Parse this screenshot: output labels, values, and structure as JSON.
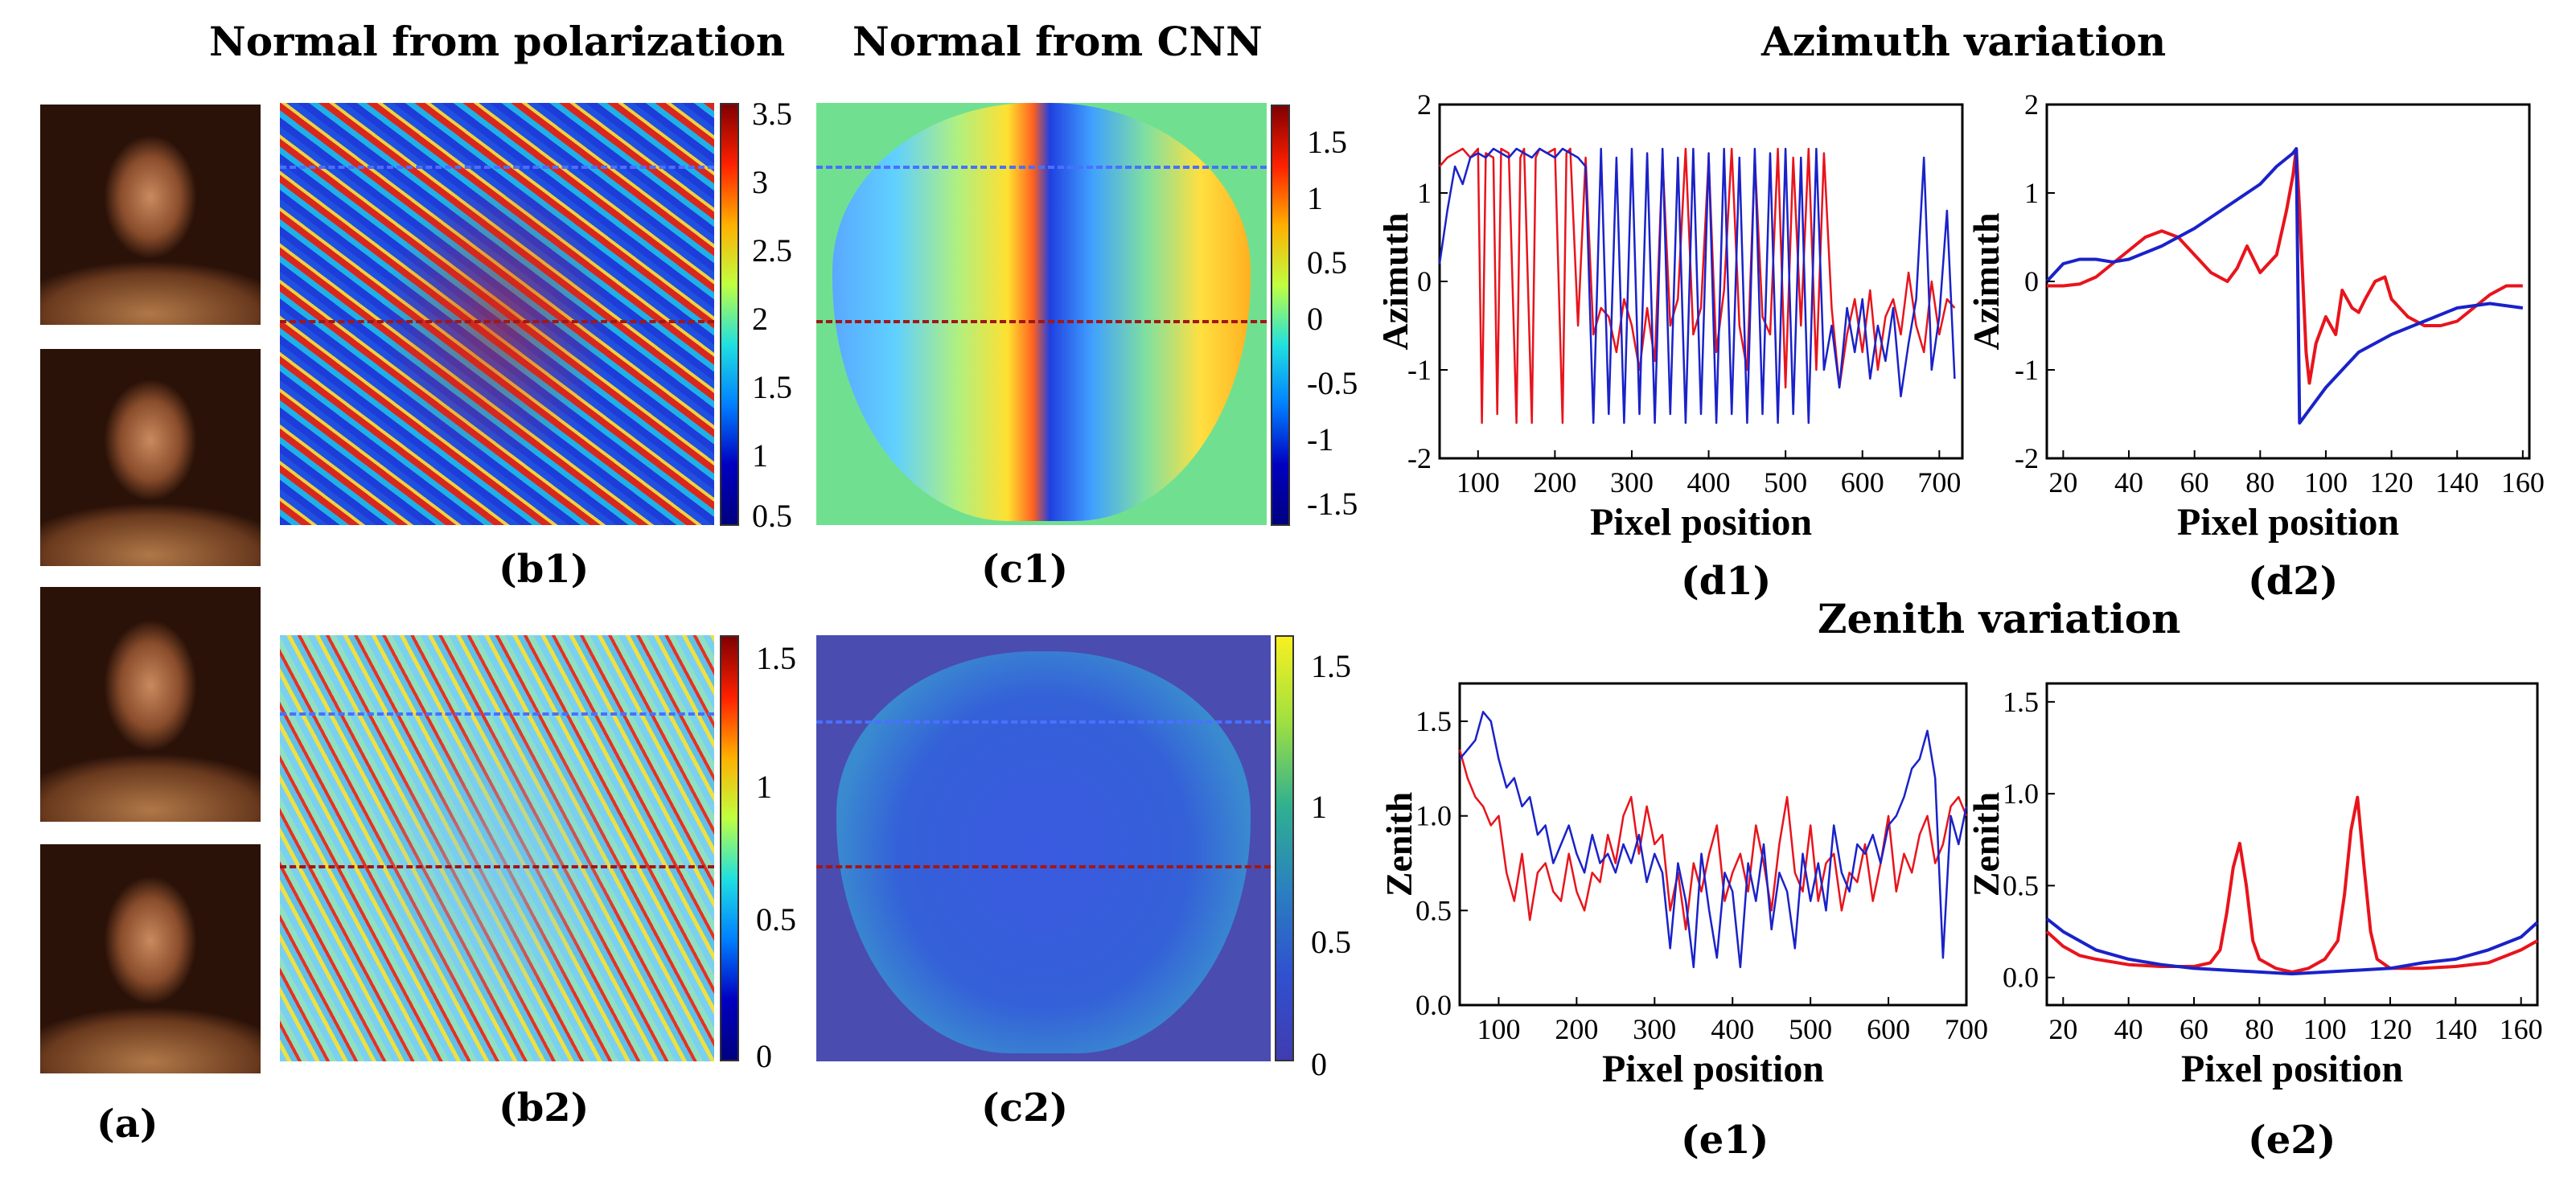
{
  "titles": {
    "polarization": "Normal from polarization",
    "cnn": "Normal from CNN",
    "azimuth": "Azimuth variation",
    "zenith": "Zenith variation"
  },
  "labels": {
    "a": "(a)",
    "b1": "(b1)",
    "b2": "(b2)",
    "c1": "(c1)",
    "c2": "(c2)",
    "d1": "(d1)",
    "d2": "(d2)",
    "e1": "(e1)",
    "e2": "(e2)"
  },
  "colorbars": {
    "b1": [
      "3.5",
      "3",
      "2.5",
      "2",
      "1.5",
      "1",
      "0.5"
    ],
    "c1": [
      "1.5",
      "1",
      "0.5",
      "0",
      "-0.5",
      "-1",
      "-1.5"
    ],
    "b2": [
      "1.5",
      "1",
      "0.5",
      "0"
    ],
    "c2": [
      "1.5",
      "1",
      "0.5",
      "0"
    ]
  },
  "colors": {
    "red": "#e8141c",
    "blue": "#1a22c8"
  },
  "chart_data": [
    {
      "id": "d1",
      "type": "line",
      "title": "",
      "xlabel": "Pixel position",
      "ylabel": "Azimuth",
      "xlim": [
        50,
        730
      ],
      "ylim": [
        -2,
        2
      ],
      "xticks": [
        100,
        200,
        300,
        400,
        500,
        600,
        700
      ],
      "yticks": [
        -2,
        -1,
        0,
        1,
        2
      ],
      "series": [
        {
          "name": "red",
          "color": "#e8141c",
          "x": [
            50,
            60,
            70,
            80,
            90,
            100,
            105,
            110,
            120,
            125,
            130,
            140,
            150,
            155,
            160,
            170,
            175,
            180,
            190,
            200,
            210,
            215,
            220,
            230,
            240,
            250,
            260,
            270,
            280,
            290,
            300,
            310,
            320,
            330,
            340,
            350,
            360,
            370,
            380,
            390,
            400,
            410,
            420,
            430,
            440,
            450,
            460,
            470,
            480,
            490,
            500,
            510,
            520,
            530,
            540,
            550,
            560,
            570,
            580,
            590,
            600,
            610,
            620,
            630,
            640,
            650,
            660,
            670,
            680,
            690,
            700,
            710,
            720
          ],
          "y": [
            1.3,
            1.4,
            1.45,
            1.5,
            1.4,
            1.5,
            -1.6,
            1.45,
            1.4,
            -1.5,
            1.5,
            1.45,
            -1.6,
            1.4,
            1.5,
            -1.6,
            1.4,
            1.5,
            1.45,
            1.5,
            -1.6,
            1.45,
            1.5,
            -0.5,
            1.4,
            -0.6,
            -0.3,
            -0.4,
            -0.8,
            -0.2,
            -0.5,
            -1.0,
            -0.3,
            -0.9,
            1.4,
            -0.5,
            -0.2,
            1.5,
            -0.6,
            -0.3,
            1.4,
            -0.8,
            -0.1,
            1.5,
            -0.5,
            -1.0,
            1.4,
            -0.4,
            -0.6,
            1.5,
            -1.2,
            1.4,
            -0.5,
            1.5,
            -1.0,
            1.45,
            -0.3,
            -1.2,
            -0.6,
            -0.2,
            -0.8,
            -0.1,
            -1.0,
            -0.4,
            -0.2,
            -0.6,
            0.1,
            -0.5,
            -0.8,
            0.0,
            -0.6,
            -0.2,
            -0.3
          ]
        },
        {
          "name": "blue",
          "color": "#1a22c8",
          "x": [
            50,
            60,
            70,
            80,
            90,
            100,
            110,
            120,
            130,
            140,
            150,
            160,
            170,
            180,
            190,
            200,
            210,
            220,
            230,
            240,
            250,
            260,
            270,
            280,
            290,
            300,
            310,
            320,
            330,
            340,
            350,
            360,
            370,
            380,
            390,
            400,
            410,
            420,
            430,
            440,
            450,
            460,
            470,
            480,
            490,
            500,
            510,
            520,
            530,
            540,
            550,
            560,
            570,
            580,
            590,
            600,
            610,
            620,
            630,
            640,
            650,
            660,
            670,
            680,
            690,
            700,
            710,
            720
          ],
          "y": [
            0.2,
            0.8,
            1.3,
            1.1,
            1.4,
            1.45,
            1.4,
            1.5,
            1.45,
            1.4,
            1.5,
            1.45,
            1.4,
            1.5,
            1.45,
            1.4,
            1.5,
            1.45,
            1.4,
            1.3,
            -1.6,
            1.5,
            -1.5,
            1.4,
            -1.6,
            1.5,
            -1.5,
            1.45,
            -1.6,
            1.5,
            -1.5,
            1.4,
            -1.6,
            1.5,
            -1.5,
            1.45,
            -1.6,
            1.5,
            -1.5,
            1.4,
            -1.6,
            1.5,
            -1.5,
            1.45,
            -1.6,
            1.5,
            -1.5,
            1.4,
            -1.6,
            1.5,
            -1.0,
            -0.5,
            -1.2,
            -0.3,
            -0.8,
            -0.2,
            -1.1,
            -0.5,
            -0.9,
            -0.3,
            -1.3,
            -0.7,
            -0.2,
            1.4,
            -1.0,
            -0.4,
            0.8,
            -1.1
          ]
        }
      ]
    },
    {
      "id": "d2",
      "type": "line",
      "title": "",
      "xlabel": "Pixel position",
      "ylabel": "Azimuth",
      "xlim": [
        15,
        162
      ],
      "ylim": [
        -2,
        2
      ],
      "xticks": [
        20,
        40,
        60,
        80,
        100,
        120,
        140,
        160
      ],
      "yticks": [
        -2,
        -1,
        0,
        1,
        2
      ],
      "series": [
        {
          "name": "red",
          "color": "#e8141c",
          "x": [
            15,
            20,
            25,
            30,
            35,
            40,
            45,
            50,
            55,
            60,
            65,
            70,
            73,
            76,
            80,
            85,
            88,
            90,
            91,
            92,
            93,
            94,
            95,
            97,
            100,
            103,
            105,
            108,
            110,
            112,
            115,
            118,
            120,
            125,
            130,
            135,
            140,
            145,
            150,
            155,
            160
          ],
          "y": [
            -0.05,
            -0.05,
            -0.03,
            0.05,
            0.2,
            0.35,
            0.5,
            0.57,
            0.5,
            0.3,
            0.1,
            0.0,
            0.15,
            0.4,
            0.1,
            0.3,
            0.8,
            1.2,
            1.5,
            0.8,
            0.0,
            -0.8,
            -1.15,
            -0.7,
            -0.4,
            -0.6,
            -0.1,
            -0.3,
            -0.35,
            -0.2,
            0.0,
            0.05,
            -0.2,
            -0.4,
            -0.5,
            -0.5,
            -0.45,
            -0.3,
            -0.15,
            -0.05,
            -0.05
          ]
        },
        {
          "name": "blue",
          "color": "#1a22c8",
          "x": [
            15,
            20,
            25,
            30,
            35,
            40,
            50,
            60,
            70,
            80,
            85,
            90,
            91,
            92,
            93,
            95,
            100,
            105,
            110,
            120,
            130,
            140,
            150,
            160
          ],
          "y": [
            0.0,
            0.2,
            0.25,
            0.25,
            0.22,
            0.25,
            0.4,
            0.6,
            0.85,
            1.1,
            1.3,
            1.45,
            1.5,
            -1.6,
            -1.55,
            -1.45,
            -1.2,
            -1.0,
            -0.8,
            -0.6,
            -0.45,
            -0.3,
            -0.25,
            -0.3
          ]
        }
      ]
    },
    {
      "id": "e1",
      "type": "line",
      "title": "",
      "xlabel": "Pixel position",
      "ylabel": "Zenith",
      "xlim": [
        50,
        700
      ],
      "ylim": [
        0,
        1.7
      ],
      "xticks": [
        100,
        200,
        300,
        400,
        500,
        600,
        700
      ],
      "yticks": [
        0.0,
        0.5,
        1.0,
        1.5
      ],
      "series": [
        {
          "name": "red",
          "color": "#e8141c",
          "x": [
            50,
            60,
            70,
            80,
            90,
            100,
            110,
            120,
            130,
            140,
            150,
            160,
            170,
            180,
            190,
            200,
            210,
            220,
            230,
            240,
            250,
            260,
            270,
            280,
            290,
            300,
            310,
            320,
            330,
            340,
            350,
            360,
            370,
            380,
            390,
            400,
            410,
            420,
            430,
            440,
            450,
            460,
            470,
            480,
            490,
            500,
            510,
            520,
            530,
            540,
            550,
            560,
            570,
            580,
            590,
            600,
            610,
            620,
            630,
            640,
            650,
            660,
            670,
            680,
            690,
            700
          ],
          "y": [
            1.35,
            1.2,
            1.1,
            1.05,
            0.95,
            1.0,
            0.7,
            0.55,
            0.8,
            0.45,
            0.7,
            0.75,
            0.6,
            0.55,
            0.8,
            0.6,
            0.5,
            0.7,
            0.65,
            0.9,
            0.75,
            1.0,
            1.1,
            0.8,
            1.05,
            0.85,
            0.9,
            0.5,
            0.7,
            0.4,
            0.75,
            0.6,
            0.8,
            0.95,
            0.55,
            0.7,
            0.8,
            0.6,
            0.95,
            0.75,
            0.5,
            0.85,
            1.1,
            0.7,
            0.6,
            0.95,
            0.55,
            0.75,
            0.8,
            0.5,
            0.7,
            0.65,
            0.85,
            0.55,
            0.75,
            1.0,
            0.6,
            0.8,
            0.7,
            0.9,
            1.0,
            0.75,
            0.85,
            1.05,
            1.1,
            1.0
          ]
        },
        {
          "name": "blue",
          "color": "#1a22c8",
          "x": [
            50,
            60,
            70,
            80,
            90,
            100,
            110,
            120,
            130,
            140,
            150,
            160,
            170,
            180,
            190,
            200,
            210,
            220,
            230,
            240,
            250,
            260,
            270,
            280,
            290,
            300,
            310,
            320,
            330,
            340,
            350,
            360,
            370,
            380,
            390,
            400,
            410,
            420,
            430,
            440,
            450,
            460,
            470,
            480,
            490,
            500,
            510,
            520,
            530,
            540,
            550,
            560,
            570,
            580,
            590,
            600,
            610,
            620,
            630,
            640,
            650,
            660,
            670,
            680,
            690,
            700
          ],
          "y": [
            1.3,
            1.35,
            1.4,
            1.55,
            1.5,
            1.3,
            1.15,
            1.2,
            1.05,
            1.1,
            0.9,
            0.95,
            0.75,
            0.85,
            0.95,
            0.8,
            0.7,
            0.9,
            0.75,
            0.8,
            0.7,
            0.85,
            0.75,
            0.9,
            0.65,
            0.8,
            0.7,
            0.3,
            0.75,
            0.55,
            0.2,
            0.8,
            0.5,
            0.25,
            0.7,
            0.6,
            0.2,
            0.75,
            0.55,
            0.85,
            0.4,
            0.7,
            0.6,
            0.3,
            0.8,
            0.55,
            0.75,
            0.5,
            0.95,
            0.7,
            0.6,
            0.85,
            0.8,
            0.9,
            0.75,
            0.95,
            1.0,
            1.1,
            1.25,
            1.3,
            1.45,
            1.2,
            0.25,
            1.0,
            0.85,
            1.05
          ]
        }
      ]
    },
    {
      "id": "e2",
      "type": "line",
      "title": "",
      "xlabel": "Pixel position",
      "ylabel": "Zenith",
      "xlim": [
        15,
        165
      ],
      "ylim": [
        -0.15,
        1.6
      ],
      "xticks": [
        20,
        40,
        60,
        80,
        100,
        120,
        140,
        160
      ],
      "yticks": [
        0.0,
        0.5,
        1.0,
        1.5
      ],
      "series": [
        {
          "name": "red",
          "color": "#e8141c",
          "x": [
            15,
            20,
            25,
            30,
            40,
            50,
            60,
            65,
            68,
            70,
            72,
            74,
            76,
            78,
            80,
            85,
            90,
            95,
            100,
            104,
            106,
            108,
            110,
            112,
            114,
            116,
            120,
            130,
            140,
            150,
            160,
            165
          ],
          "y": [
            0.25,
            0.17,
            0.12,
            0.1,
            0.07,
            0.06,
            0.06,
            0.08,
            0.15,
            0.35,
            0.6,
            0.73,
            0.5,
            0.2,
            0.1,
            0.05,
            0.03,
            0.05,
            0.1,
            0.2,
            0.45,
            0.8,
            0.98,
            0.6,
            0.25,
            0.1,
            0.05,
            0.05,
            0.06,
            0.08,
            0.15,
            0.2
          ]
        },
        {
          "name": "blue",
          "color": "#1a22c8",
          "x": [
            15,
            20,
            30,
            40,
            50,
            60,
            70,
            80,
            90,
            100,
            110,
            120,
            130,
            140,
            150,
            160,
            165
          ],
          "y": [
            0.32,
            0.25,
            0.15,
            0.1,
            0.07,
            0.05,
            0.04,
            0.03,
            0.02,
            0.03,
            0.04,
            0.05,
            0.08,
            0.1,
            0.15,
            0.22,
            0.3
          ]
        }
      ]
    }
  ]
}
